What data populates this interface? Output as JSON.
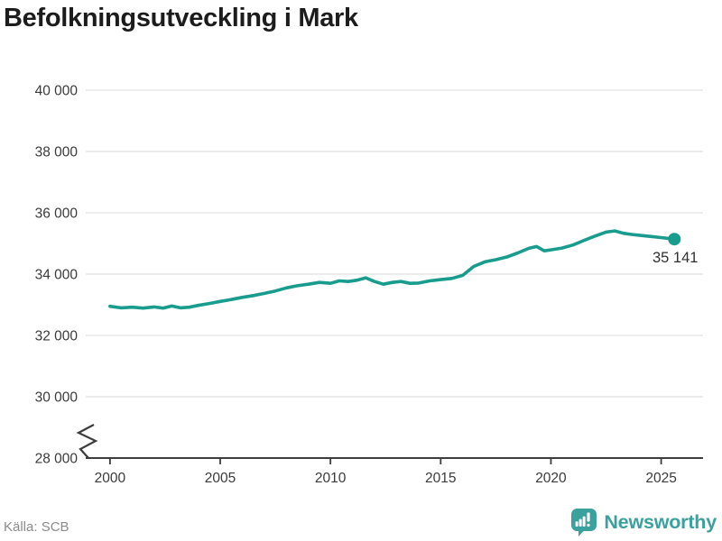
{
  "header": {
    "title": "Befolkningsutveckling i Mark"
  },
  "footer": {
    "source": "Källa: SCB",
    "brand": "Newsworthy"
  },
  "colors": {
    "line": "#189c8d",
    "brand": "#3aa19d",
    "grid": "#d9d9d9",
    "axis": "#3d3d3d",
    "title_text": "#1c1c1c",
    "tick_text": "#3a3a3a",
    "muted_text": "#8c8c8c"
  },
  "chart_data": {
    "type": "line",
    "title": "Befolkningsutveckling i Mark",
    "xlabel": "",
    "ylabel": "",
    "xlim": [
      1998.9,
      2026.9
    ],
    "ylim": [
      28000,
      40000
    ],
    "axis_break_at_y_min": true,
    "grid": "horizontal",
    "legend": "none",
    "x_ticks": [
      2000,
      2005,
      2010,
      2015,
      2020,
      2025
    ],
    "x_tick_labels": [
      "2000",
      "2005",
      "2010",
      "2015",
      "2020",
      "2025"
    ],
    "y_ticks": [
      28000,
      30000,
      32000,
      34000,
      36000,
      38000,
      40000
    ],
    "y_tick_labels": [
      "28 000",
      "30 000",
      "32 000",
      "34 000",
      "36 000",
      "38 000",
      "40 000"
    ],
    "last_value_label": "35 141",
    "series": [
      {
        "color": "#189c8d",
        "x": [
          2000.0,
          2000.5,
          2001.0,
          2001.5,
          2002.0,
          2002.4,
          2002.8,
          2003.2,
          2003.6,
          2004.0,
          2004.5,
          2005.0,
          2005.5,
          2006.0,
          2006.5,
          2007.0,
          2007.5,
          2008.0,
          2008.5,
          2009.0,
          2009.5,
          2010.0,
          2010.4,
          2010.8,
          2011.2,
          2011.6,
          2012.0,
          2012.4,
          2012.8,
          2013.2,
          2013.6,
          2014.0,
          2014.5,
          2015.0,
          2015.5,
          2016.0,
          2016.5,
          2017.0,
          2017.5,
          2018.0,
          2018.5,
          2019.0,
          2019.35,
          2019.7,
          2020.0,
          2020.5,
          2021.0,
          2021.5,
          2022.0,
          2022.5,
          2022.9,
          2023.3,
          2023.7,
          2024.1,
          2024.5,
          2025.0,
          2025.6
        ],
        "y": [
          32950,
          32900,
          32920,
          32890,
          32930,
          32890,
          32960,
          32900,
          32920,
          32980,
          33040,
          33110,
          33170,
          33240,
          33300,
          33370,
          33450,
          33550,
          33620,
          33670,
          33730,
          33700,
          33780,
          33760,
          33800,
          33880,
          33760,
          33670,
          33730,
          33760,
          33700,
          33710,
          33780,
          33820,
          33860,
          33960,
          34250,
          34400,
          34470,
          34560,
          34690,
          34840,
          34900,
          34760,
          34790,
          34850,
          34950,
          35100,
          35240,
          35370,
          35410,
          35330,
          35290,
          35260,
          35230,
          35190,
          35141
        ]
      }
    ]
  }
}
